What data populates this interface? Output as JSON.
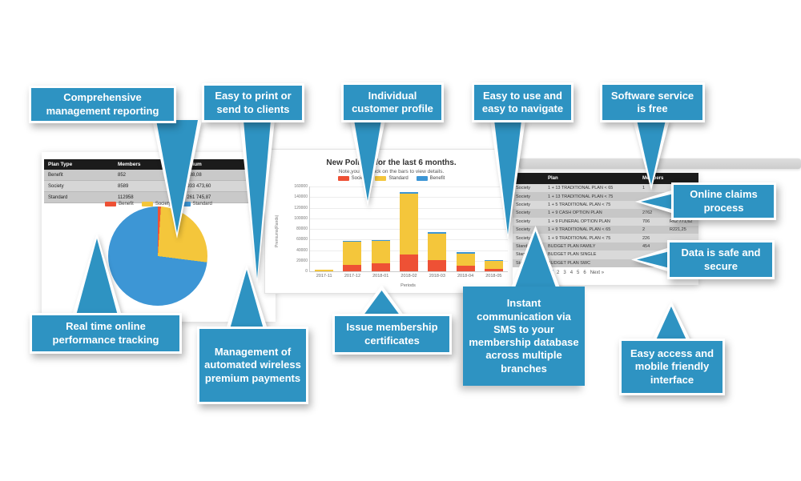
{
  "callouts": [
    {
      "text": "Comprehensive management reporting"
    },
    {
      "text": "Easy to print or send to clients"
    },
    {
      "text": "Individual customer profile"
    },
    {
      "text": "Easy to use and easy to navigate"
    },
    {
      "text": "Software service is free"
    },
    {
      "text": "Online claims process"
    },
    {
      "text": "Data is safe and secure"
    },
    {
      "text": "Real time online performance tracking"
    },
    {
      "text": "Management of automated wireless premium payments"
    },
    {
      "text": "Issue membership certificates"
    },
    {
      "text": "Instant communication via SMS to your membership database across multiple branches"
    },
    {
      "text": "Easy access and mobile friendly interface"
    }
  ],
  "left_panel": {
    "table": {
      "headers": [
        "Plan Type",
        "Members",
        "Premium"
      ],
      "rows": [
        [
          "Benefit",
          "852",
          "R6 188,08"
        ],
        [
          "Society",
          "8589",
          "R1 933 473,60"
        ],
        [
          "Standard",
          "112958",
          "R3 261 745,87"
        ]
      ]
    },
    "legend": [
      {
        "label": "Benefit",
        "color": "#ee5135"
      },
      {
        "label": "Society",
        "color": "#f4c63b"
      },
      {
        "label": "Standard",
        "color": "#3d96d5"
      }
    ]
  },
  "chart_data": [
    {
      "type": "pie",
      "labels": [
        "Benefit",
        "Society",
        "Standard"
      ],
      "values": [
        1,
        26,
        73
      ],
      "colors": [
        "#ee5135",
        "#f4c63b",
        "#3d96d5"
      ],
      "legend_position": "top"
    },
    {
      "type": "bar",
      "stacked": true,
      "title": "New Polices for the last 6 months.",
      "subtitle": "Note,you can click on the bars to view details.",
      "categories": [
        "2017-11",
        "2017-12",
        "2018-01",
        "2018-02",
        "2018-03",
        "2018-04",
        "2018-05"
      ],
      "series": [
        {
          "name": "Society",
          "color": "#ee5135",
          "values": [
            0,
            12000,
            15500,
            31000,
            21500,
            10000,
            5000
          ]
        },
        {
          "name": "Standard",
          "color": "#f4c63b",
          "values": [
            3000,
            44000,
            42000,
            116000,
            50000,
            23000,
            15500
          ]
        },
        {
          "name": "Benefit",
          "color": "#3d96d5",
          "values": [
            0,
            1000,
            2000,
            2000,
            2500,
            4000,
            1000
          ]
        }
      ],
      "xlabel": "Periods",
      "ylabel": "Premiums(Rands)",
      "ylim": [
        0,
        160000
      ],
      "ytick_step": 20000,
      "grid": true,
      "legend_position": "top"
    }
  ],
  "right_panel": {
    "table": {
      "headers": [
        "",
        "Plan",
        "Members",
        ""
      ],
      "rows": [
        [
          "Society",
          "1 + 13 TRADITIONAL PLAN < 65",
          "1",
          ""
        ],
        [
          "Society",
          "1 + 13 TRADITIONAL PLAN < 75",
          "",
          ""
        ],
        [
          "Society",
          "1 + 5 TRADITIONAL PLAN < 75",
          "",
          ""
        ],
        [
          "Society",
          "1 + 9 CASH OPTION PLAN",
          "2762",
          ""
        ],
        [
          "Society",
          "1 + 9 FUNERAL OPTION PLAN",
          "706",
          "R62 771,62"
        ],
        [
          "Society",
          "1 + 9 TRADITIONAL PLAN < 65",
          "2",
          "R221,25"
        ],
        [
          "Society",
          "1 + 9 TRADITIONAL PLAN < 75",
          "226",
          ""
        ],
        [
          "Standard",
          "BUDGET PLAN FAMILY",
          "454",
          ""
        ],
        [
          "Standard",
          "BUDGET PLAN SINGLE",
          "",
          ""
        ],
        [
          "Standard",
          "BUDGET PLAN SWC",
          "",
          ""
        ]
      ],
      "pagination": [
        "1",
        "2",
        "3",
        "4",
        "5",
        "6",
        "Next »"
      ],
      "active_page": "1"
    }
  },
  "colors": {
    "callout_blue": "#2e93c2",
    "table_header_black": "#1b1b1b",
    "pagination_active": "#3e8fd0"
  }
}
